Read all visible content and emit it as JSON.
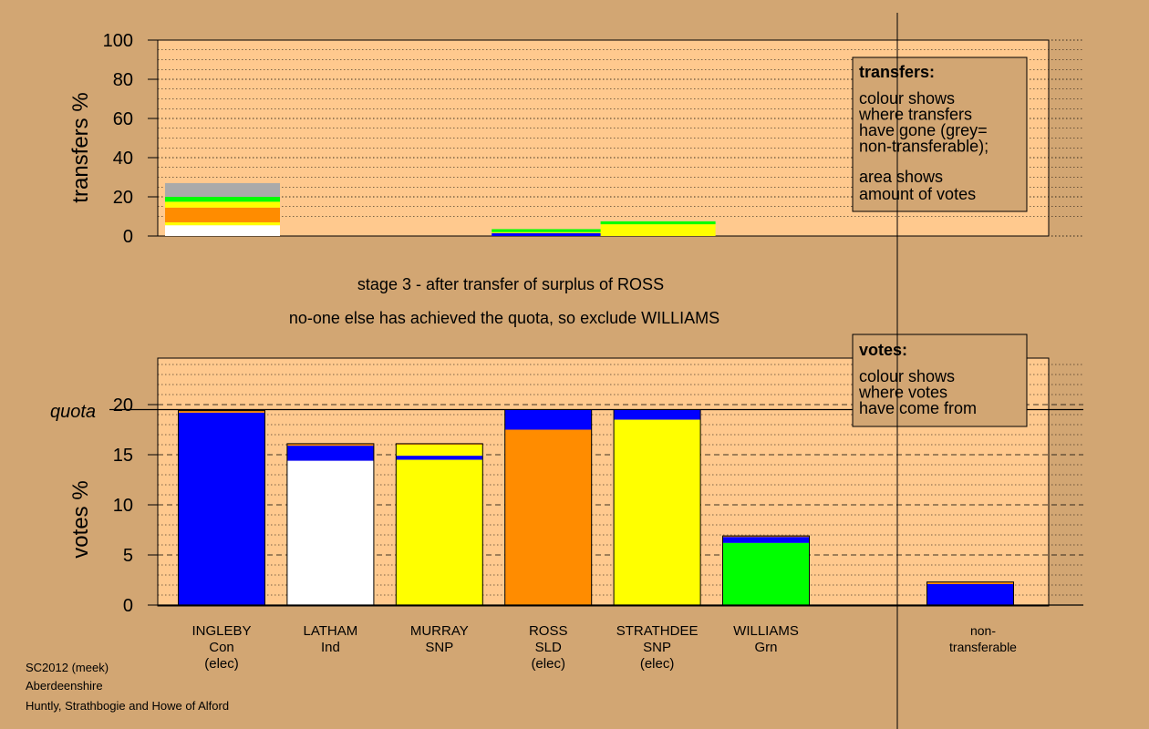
{
  "chart_data": [
    {
      "type": "bar",
      "stacked": true,
      "ylabel": "transfers %",
      "ylim": [
        0,
        100
      ],
      "yticks": [
        0,
        20,
        40,
        60,
        80,
        100
      ],
      "grid": "dotted",
      "candidates": [
        "INGLEBY",
        "LATHAM",
        "MURRAY",
        "ROSS",
        "STRATHDEE",
        "WILLIAMS",
        "non-transferable"
      ],
      "stacks": [
        {
          "candidate": "INGLEBY",
          "segments": [
            {
              "color": "#ffffff",
              "value": 5.5
            },
            {
              "color": "#ffff00",
              "value": 1.5
            },
            {
              "color": "#ff8c00",
              "value": 7.5
            },
            {
              "color": "#ffff00",
              "value": 3.0
            },
            {
              "color": "#00ff00",
              "value": 2.5
            },
            {
              "color": "#aaaaaa",
              "value": 7.0
            }
          ]
        },
        {
          "candidate": "ROSS",
          "segments": [
            {
              "color": "#0000ff",
              "value": 1.5
            },
            {
              "color": "#ffff00",
              "value": 0.5
            },
            {
              "color": "#00ff00",
              "value": 1.5
            }
          ]
        },
        {
          "candidate": "STRATHDEE",
          "segments": [
            {
              "color": "#ffff00",
              "value": 6.0
            },
            {
              "color": "#00ff00",
              "value": 1.5
            }
          ]
        }
      ],
      "legend": {
        "title": "transfers:",
        "lines1": [
          "colour shows",
          "where transfers",
          "have gone (grey=",
          "non-transferable);"
        ],
        "lines2": [
          "area shows",
          "amount of votes"
        ]
      }
    },
    {
      "type": "bar",
      "stacked": true,
      "ylabel": "votes %",
      "ylim": [
        0,
        25
      ],
      "yticks": [
        0,
        5,
        10,
        15,
        20
      ],
      "quota_label": "quota",
      "quota": 19.5,
      "grid": "dotted, dashed at 5s",
      "candidates": [
        "INGLEBY",
        "LATHAM",
        "MURRAY",
        "ROSS",
        "STRATHDEE",
        "WILLIAMS",
        "non-transferable"
      ],
      "stacks": [
        {
          "candidate": "INGLEBY",
          "segments": [
            {
              "color": "#0000ff",
              "value": 19.2
            },
            {
              "color": "#ff8c00",
              "value": 0.2
            }
          ]
        },
        {
          "candidate": "LATHAM",
          "segments": [
            {
              "color": "#ffffff",
              "value": 14.4
            },
            {
              "color": "#0000ff",
              "value": 1.5
            },
            {
              "color": "#ff8c00",
              "value": 0.2
            }
          ]
        },
        {
          "candidate": "MURRAY",
          "segments": [
            {
              "color": "#ffff00",
              "value": 14.5
            },
            {
              "color": "#0000ff",
              "value": 0.4
            },
            {
              "color": "#ffff00",
              "value": 1.1
            },
            {
              "color": "#ff8c00",
              "value": 0.1
            }
          ]
        },
        {
          "candidate": "ROSS",
          "segments": [
            {
              "color": "#ff8c00",
              "value": 17.5
            },
            {
              "color": "#0000ff",
              "value": 2.0
            }
          ]
        },
        {
          "candidate": "STRATHDEE",
          "segments": [
            {
              "color": "#ffff00",
              "value": 18.5
            },
            {
              "color": "#0000ff",
              "value": 1.0
            }
          ]
        },
        {
          "candidate": "WILLIAMS",
          "segments": [
            {
              "color": "#00ff00",
              "value": 6.2
            },
            {
              "color": "#0000ff",
              "value": 0.6
            },
            {
              "color": "#ff8c00",
              "value": 0.1
            }
          ]
        },
        {
          "candidate": "non-transferable",
          "segments": [
            {
              "color": "#0000ff",
              "value": 2.1
            },
            {
              "color": "#ff8c00",
              "value": 0.2
            }
          ]
        }
      ],
      "legend": {
        "title": "votes:",
        "lines1": [
          "colour shows",
          "where votes",
          "have come from"
        ]
      }
    }
  ],
  "category_labels": [
    {
      "lines": [
        "INGLEBY",
        "Con",
        "(elec)"
      ]
    },
    {
      "lines": [
        "LATHAM",
        "Ind"
      ]
    },
    {
      "lines": [
        "MURRAY",
        "SNP"
      ]
    },
    {
      "lines": [
        "ROSS",
        "SLD",
        "(elec)"
      ]
    },
    {
      "lines": [
        "STRATHDEE",
        "SNP",
        "(elec)"
      ]
    },
    {
      "lines": [
        "WILLIAMS",
        "Grn"
      ]
    },
    {
      "lines": [
        "non-",
        "transferable"
      ]
    }
  ],
  "messages": {
    "stage": "stage 3 - after transfer of surplus of ROSS",
    "action": "no-one else has achieved the quota, so exclude WILLIAMS"
  },
  "footer": {
    "line1": "SC2012 (meek)",
    "line2": "Aberdeenshire",
    "line3": "Huntly, Strathbogie and Howe of Alford"
  },
  "colors": {
    "background": "#d2a673",
    "plot_background": "#ffc98e"
  }
}
